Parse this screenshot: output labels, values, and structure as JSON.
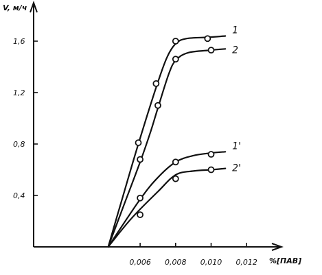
{
  "chart_data": {
    "type": "line",
    "xlabel": "%[ПАВ]",
    "ylabel": "V, м/ч",
    "xlim": [
      0,
      0.0135
    ],
    "ylim": [
      0,
      1.75
    ],
    "x_ticks": [
      0.006,
      0.008,
      0.01,
      0.012
    ],
    "x_tick_labels": [
      "0,006",
      "0,008",
      "0,010",
      "0,012"
    ],
    "y_ticks": [
      0.4,
      0.8,
      1.2,
      1.6
    ],
    "y_tick_labels": [
      "0,4",
      "0,8",
      "1,2",
      "1,6"
    ],
    "grid": false,
    "legend": "labels at right end of each curve",
    "series": [
      {
        "name": "1",
        "points": [
          [
            0.0059,
            0.81
          ],
          [
            0.0069,
            1.27
          ],
          [
            0.008,
            1.6
          ],
          [
            0.0098,
            1.62
          ]
        ],
        "curve": [
          [
            0.0042,
            0
          ],
          [
            0.005,
            0.38
          ],
          [
            0.0059,
            0.8
          ],
          [
            0.0069,
            1.24
          ],
          [
            0.0075,
            1.47
          ],
          [
            0.008,
            1.58
          ],
          [
            0.0086,
            1.62
          ],
          [
            0.0098,
            1.63
          ],
          [
            0.0108,
            1.64
          ]
        ]
      },
      {
        "name": "2",
        "points": [
          [
            0.006,
            0.68
          ],
          [
            0.007,
            1.1
          ],
          [
            0.008,
            1.46
          ],
          [
            0.01,
            1.53
          ]
        ],
        "curve": [
          [
            0.0042,
            0
          ],
          [
            0.0051,
            0.33
          ],
          [
            0.006,
            0.66
          ],
          [
            0.0066,
            0.9
          ],
          [
            0.007,
            1.08
          ],
          [
            0.0076,
            1.34
          ],
          [
            0.008,
            1.45
          ],
          [
            0.0087,
            1.51
          ],
          [
            0.01,
            1.53
          ],
          [
            0.0108,
            1.54
          ]
        ]
      },
      {
        "name": "1'",
        "points": [
          [
            0.006,
            0.38
          ],
          [
            0.008,
            0.66
          ],
          [
            0.01,
            0.72
          ]
        ],
        "curve": [
          [
            0.0042,
            0
          ],
          [
            0.006,
            0.37
          ],
          [
            0.007,
            0.54
          ],
          [
            0.008,
            0.66
          ],
          [
            0.009,
            0.71
          ],
          [
            0.01,
            0.73
          ],
          [
            0.0108,
            0.74
          ]
        ]
      },
      {
        "name": "2'",
        "points": [
          [
            0.006,
            0.25
          ],
          [
            0.008,
            0.53
          ],
          [
            0.01,
            0.6
          ]
        ],
        "curve": [
          [
            0.0042,
            0
          ],
          [
            0.0055,
            0.22
          ],
          [
            0.007,
            0.43
          ],
          [
            0.008,
            0.56
          ],
          [
            0.009,
            0.59
          ],
          [
            0.01,
            0.6
          ],
          [
            0.0108,
            0.61
          ]
        ]
      }
    ]
  }
}
